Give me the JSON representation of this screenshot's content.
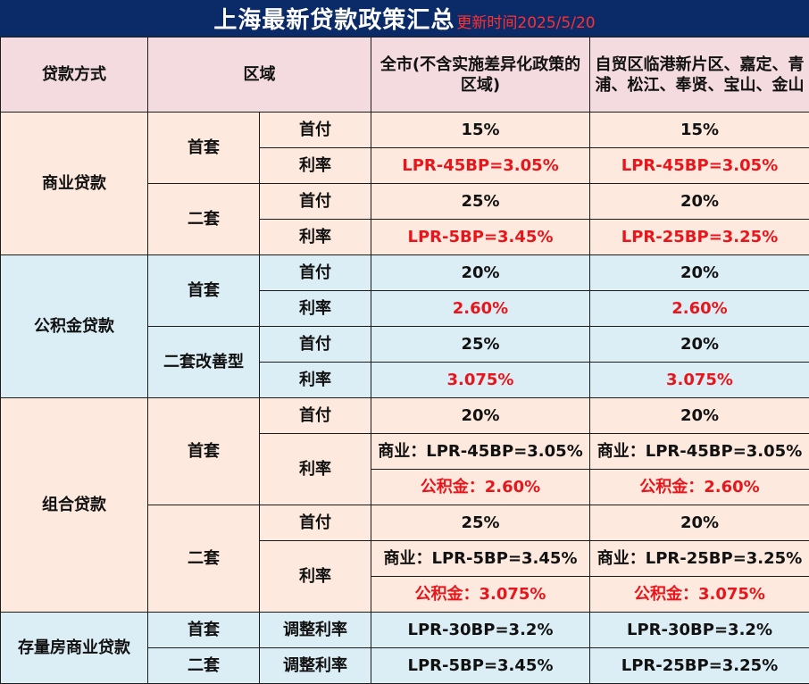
{
  "title": {
    "main": "上海最新贷款政策汇总",
    "updated": "更新时间2025/5/20"
  },
  "colors": {
    "title_bg": "#0b2a68",
    "header_bg": "#f3dbdf",
    "peach_bg": "#fde9dd",
    "blue_bg": "#dbeef5",
    "highlight_red": "#e8161c"
  },
  "headers": {
    "loan_type": "贷款方式",
    "region": "区域",
    "city_wide": "全市(不含实施差异化政策的区域)",
    "special_zones": "自贸区临港新片区、嘉定、青浦、松江、奉贤、宝山、金山"
  },
  "labels": {
    "first_home": "首套",
    "second_home": "二套",
    "second_upgrade": "二套改善型",
    "down_payment": "首付",
    "rate": "利率",
    "adjusted_rate": "调整利率"
  },
  "sections": {
    "commercial": {
      "name": "商业贷款",
      "first_down_city": "15%",
      "first_down_zone": "15%",
      "first_rate_city": "LPR-45BP=3.05%",
      "first_rate_zone": "LPR-45BP=3.05%",
      "second_down_city": "25%",
      "second_down_zone": "20%",
      "second_rate_city": "LPR-5BP=3.45%",
      "second_rate_zone": "LPR-25BP=3.25%"
    },
    "provident": {
      "name": "公积金贷款",
      "first_down_city": "20%",
      "first_down_zone": "20%",
      "first_rate_city": "2.60%",
      "first_rate_zone": "2.60%",
      "second_down_city": "25%",
      "second_down_zone": "20%",
      "second_rate_city": "3.075%",
      "second_rate_zone": "3.075%"
    },
    "combo": {
      "name": "组合贷款",
      "first_down_city": "20%",
      "first_down_zone": "20%",
      "first_comm_city": "商业：LPR-45BP=3.05%",
      "first_comm_zone": "商业：LPR-45BP=3.05%",
      "first_pf_city": "公积金：2.60%",
      "first_pf_zone": "公积金：2.60%",
      "second_down_city": "25%",
      "second_down_zone": "20%",
      "second_comm_city": "商业：LPR-5BP=3.45%",
      "second_comm_zone": "商业：LPR-25BP=3.25%",
      "second_pf_city": "公积金：3.075%",
      "second_pf_zone": "公积金：3.075%"
    },
    "existing": {
      "name": "存量房商业贷款",
      "first_rate_city": "LPR-30BP=3.2%",
      "first_rate_zone": "LPR-30BP=3.2%",
      "second_rate_city": "LPR-5BP=3.45%",
      "second_rate_zone": "LPR-25BP=3.25%"
    }
  }
}
